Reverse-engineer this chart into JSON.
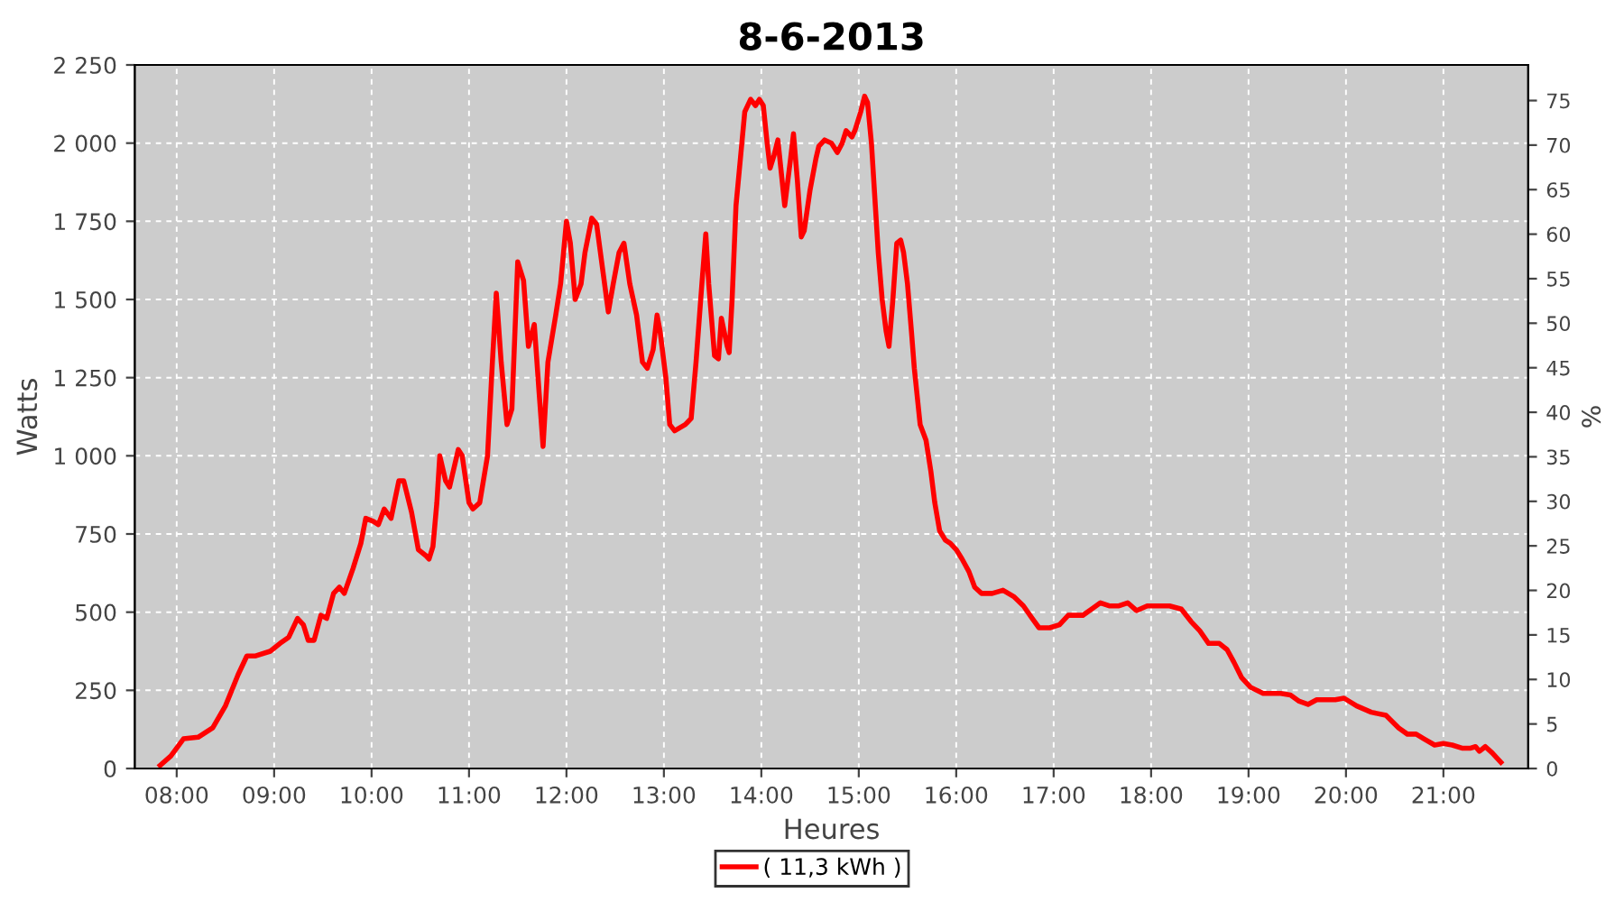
{
  "chart_data": {
    "type": "line",
    "title": "8-6-2013",
    "xlabel": "Heures",
    "ylabel": "Watts",
    "y2label": "%",
    "xlim": [
      7.57,
      21.87
    ],
    "xticks": [
      {
        "value": 8,
        "label": "08:00"
      },
      {
        "value": 9,
        "label": "09:00"
      },
      {
        "value": 10,
        "label": "10:00"
      },
      {
        "value": 11,
        "label": "11:00"
      },
      {
        "value": 12,
        "label": "12:00"
      },
      {
        "value": 13,
        "label": "13:00"
      },
      {
        "value": 14,
        "label": "14:00"
      },
      {
        "value": 15,
        "label": "15:00"
      },
      {
        "value": 16,
        "label": "16:00"
      },
      {
        "value": 17,
        "label": "17:00"
      },
      {
        "value": 18,
        "label": "18:00"
      },
      {
        "value": 19,
        "label": "19:00"
      },
      {
        "value": 20,
        "label": "20:00"
      },
      {
        "value": 21,
        "label": "21:00"
      }
    ],
    "ylim": [
      0,
      2250
    ],
    "yticks": [
      0,
      250,
      500,
      750,
      {
        "value": 1000,
        "label": "1 000"
      },
      {
        "value": 1250,
        "label": "1 250"
      },
      {
        "value": 1500,
        "label": "1 500"
      },
      {
        "value": 1750,
        "label": "1 750"
      },
      {
        "value": 2000,
        "label": "2 000"
      },
      {
        "value": 2250,
        "label": "2 250"
      }
    ],
    "y2lim": [
      0,
      79
    ],
    "y2ticks": [
      0,
      5,
      10,
      15,
      20,
      25,
      30,
      35,
      40,
      45,
      50,
      55,
      60,
      65,
      70,
      75
    ],
    "grid": true,
    "legend": "bottom",
    "marker": "none",
    "line_style": "solid",
    "series": [
      {
        "name": "( 11,3 kWh )",
        "color": "#ff0000",
        "x": [
          7.83,
          7.94,
          8.07,
          8.22,
          8.37,
          8.5,
          8.63,
          8.72,
          8.81,
          8.96,
          9.06,
          9.15,
          9.24,
          9.3,
          9.35,
          9.41,
          9.48,
          9.54,
          9.61,
          9.67,
          9.72,
          9.81,
          9.89,
          9.94,
          10.02,
          10.07,
          10.13,
          10.2,
          10.28,
          10.33,
          10.41,
          10.48,
          10.56,
          10.59,
          10.63,
          10.67,
          10.7,
          10.76,
          10.8,
          10.83,
          10.89,
          10.93,
          11.0,
          11.04,
          11.11,
          11.19,
          11.24,
          11.28,
          11.33,
          11.39,
          11.44,
          11.5,
          11.56,
          11.61,
          11.67,
          11.72,
          11.76,
          11.81,
          11.89,
          11.94,
          12.0,
          12.04,
          12.09,
          12.15,
          12.19,
          12.26,
          12.31,
          12.37,
          12.43,
          12.48,
          12.54,
          12.59,
          12.65,
          12.72,
          12.78,
          12.83,
          12.89,
          12.93,
          12.96,
          13.02,
          13.06,
          13.11,
          13.22,
          13.28,
          13.33,
          13.39,
          13.43,
          13.46,
          13.52,
          13.56,
          13.59,
          13.65,
          13.67,
          13.7,
          13.74,
          13.8,
          13.83,
          13.89,
          13.94,
          13.98,
          14.02,
          14.06,
          14.09,
          14.13,
          14.17,
          14.2,
          14.24,
          14.3,
          14.33,
          14.37,
          14.41,
          14.44,
          14.5,
          14.56,
          14.59,
          14.65,
          14.72,
          14.78,
          14.83,
          14.87,
          14.93,
          14.96,
          15.02,
          15.06,
          15.09,
          15.13,
          15.17,
          15.2,
          15.24,
          15.28,
          15.31,
          15.35,
          15.39,
          15.43,
          15.46,
          15.5,
          15.54,
          15.57,
          15.63,
          15.69,
          15.74,
          15.78,
          15.83,
          15.89,
          15.94,
          16.0,
          16.06,
          16.13,
          16.19,
          16.26,
          16.37,
          16.48,
          16.59,
          16.69,
          16.78,
          16.85,
          16.96,
          17.06,
          17.15,
          17.3,
          17.39,
          17.48,
          17.57,
          17.67,
          17.76,
          17.85,
          17.96,
          18.07,
          18.19,
          18.31,
          18.41,
          18.5,
          18.59,
          18.7,
          18.78,
          18.85,
          18.93,
          19.02,
          19.15,
          19.33,
          19.43,
          19.52,
          19.61,
          19.7,
          19.89,
          19.98,
          20.11,
          20.26,
          20.41,
          20.54,
          20.63,
          20.72,
          20.8,
          20.91,
          21.0,
          21.09,
          21.19,
          21.28,
          21.33,
          21.37,
          21.43,
          21.5,
          21.56,
          21.59
        ],
        "values": [
          10,
          40,
          95,
          100,
          130,
          200,
          300,
          360,
          360,
          375,
          400,
          420,
          480,
          460,
          410,
          410,
          490,
          480,
          560,
          580,
          560,
          640,
          720,
          800,
          790,
          780,
          830,
          800,
          920,
          920,
          820,
          700,
          680,
          670,
          710,
          850,
          1000,
          920,
          900,
          940,
          1020,
          1000,
          850,
          830,
          850,
          1000,
          1300,
          1520,
          1300,
          1100,
          1150,
          1620,
          1560,
          1350,
          1420,
          1200,
          1030,
          1300,
          1450,
          1550,
          1750,
          1680,
          1500,
          1550,
          1650,
          1760,
          1740,
          1600,
          1460,
          1550,
          1650,
          1680,
          1550,
          1450,
          1300,
          1280,
          1340,
          1450,
          1400,
          1250,
          1100,
          1080,
          1100,
          1120,
          1300,
          1550,
          1710,
          1550,
          1320,
          1310,
          1440,
          1350,
          1330,
          1500,
          1800,
          2000,
          2100,
          2140,
          2120,
          2140,
          2120,
          2000,
          1920,
          1960,
          2010,
          1920,
          1800,
          1950,
          2030,
          1880,
          1700,
          1720,
          1850,
          1950,
          1990,
          2010,
          2000,
          1970,
          2000,
          2040,
          2020,
          2040,
          2100,
          2150,
          2130,
          2000,
          1800,
          1650,
          1500,
          1400,
          1350,
          1500,
          1680,
          1690,
          1650,
          1550,
          1400,
          1280,
          1100,
          1050,
          950,
          850,
          760,
          730,
          720,
          700,
          670,
          630,
          580,
          560,
          560,
          570,
          550,
          520,
          480,
          450,
          450,
          460,
          490,
          490,
          510,
          530,
          520,
          520,
          530,
          505,
          520,
          520,
          520,
          510,
          470,
          440,
          400,
          400,
          380,
          340,
          290,
          260,
          240,
          240,
          235,
          215,
          205,
          220,
          220,
          225,
          200,
          180,
          170,
          130,
          110,
          110,
          95,
          75,
          80,
          75,
          65,
          65,
          70,
          55,
          70,
          50,
          30,
          20
        ]
      }
    ]
  }
}
